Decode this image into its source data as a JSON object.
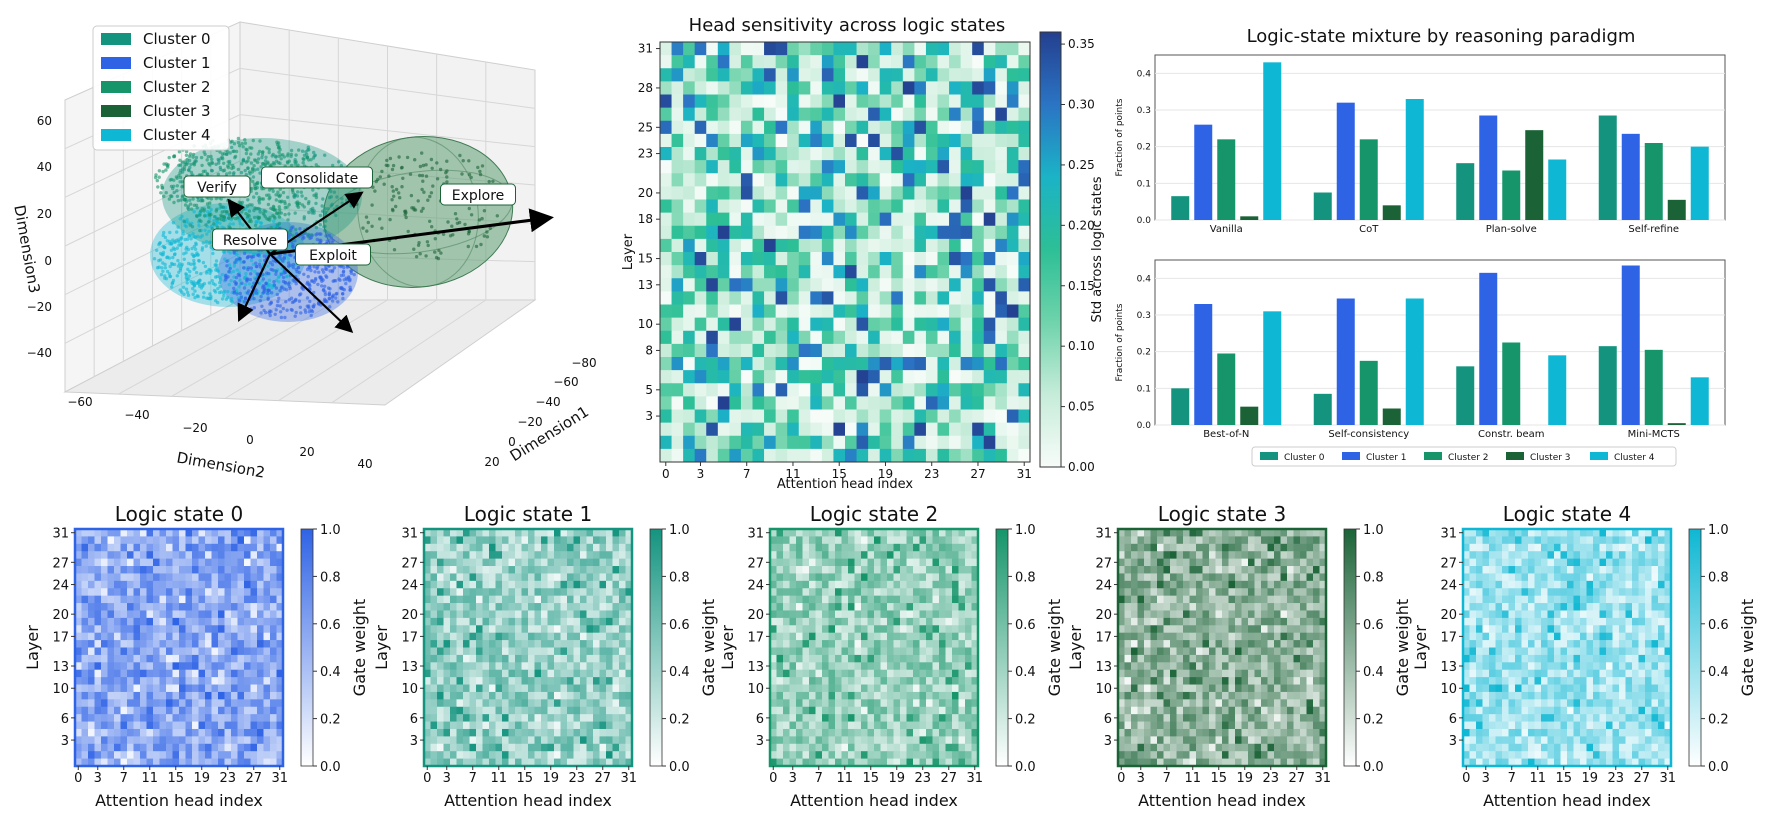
{
  "colors": {
    "cluster0": "#14947f",
    "cluster1": "#2f63e6",
    "cluster2": "#16956a",
    "cluster3": "#1b6337",
    "cluster4": "#0eb7d3",
    "explore_shell": "#5e9e72",
    "sensitivity_cmap": [
      "#f7fcf9",
      "#c6ecd9",
      "#6fd3ab",
      "#2dbf96",
      "#1bb3c6",
      "#2b74c4",
      "#243f8f"
    ]
  },
  "scatter3d": {
    "legend": [
      "Cluster 0",
      "Cluster 1",
      "Cluster 2",
      "Cluster 3",
      "Cluster 4"
    ],
    "state_labels": [
      "Verify",
      "Consolidate",
      "Explore",
      "Resolve",
      "Exploit"
    ],
    "xlabel": "Dimension2",
    "ylabel": "Dimension1",
    "zlabel": "Dimension3",
    "x_ticks": [
      "−60",
      "−40",
      "−20",
      "0",
      "20",
      "40"
    ],
    "y_ticks": [
      "−80",
      "−60",
      "−40",
      "−20",
      "0",
      "20"
    ],
    "z_ticks": [
      "60",
      "40",
      "20",
      "0",
      "−20",
      "−40"
    ]
  },
  "sensitivity": {
    "title": "Head sensitivity across logic states",
    "xlabel": "Attention head index",
    "ylabel": "Layer",
    "colorbar_label": "Std across logic states",
    "x_ticks": [
      "0",
      "3",
      "7",
      "11",
      "15",
      "19",
      "23",
      "27",
      "31"
    ],
    "y_ticks": [
      "31",
      "28",
      "25",
      "23",
      "20",
      "18",
      "15",
      "13",
      "10",
      "8",
      "5",
      "3"
    ],
    "colorbar_ticks": [
      "0.35",
      "0.30",
      "0.25",
      "0.20",
      "0.15",
      "0.10",
      "0.05",
      "0.00"
    ],
    "vmax": 0.36
  },
  "chart_data": [
    {
      "type": "scatter",
      "title": "",
      "xlabel": "Dimension2",
      "ylabel": "Dimension1",
      "zlabel": "Dimension3",
      "series": [
        {
          "name": "Cluster 0"
        },
        {
          "name": "Cluster 1"
        },
        {
          "name": "Cluster 2"
        },
        {
          "name": "Cluster 3"
        },
        {
          "name": "Cluster 4"
        }
      ],
      "annotations": [
        "Verify",
        "Consolidate",
        "Explore",
        "Resolve",
        "Exploit"
      ],
      "xlim": [
        -60,
        40
      ],
      "ylim": [
        -80,
        20
      ],
      "zlim": [
        -40,
        60
      ]
    },
    {
      "type": "heatmap",
      "title": "Head sensitivity across logic states",
      "xlabel": "Attention head index",
      "ylabel": "Layer",
      "colorbar_label": "Std across logic states",
      "value_range": [
        0.0,
        0.36
      ],
      "shape": [
        32,
        32
      ]
    },
    {
      "type": "bar",
      "title": "Logic-state mixture by reasoning paradigm",
      "ylabel": "Fraction of points",
      "legend": [
        "Cluster 0",
        "Cluster 1",
        "Cluster 2",
        "Cluster 3",
        "Cluster 4"
      ],
      "y_ticks": [
        "0.4",
        "0.3",
        "0.2",
        "0.1",
        "0.0"
      ],
      "ylim": [
        0,
        0.45
      ],
      "panels": [
        {
          "categories": [
            "Vanilla",
            "CoT",
            "Plan-solve",
            "Self-refine"
          ],
          "series": [
            {
              "name": "Cluster 0",
              "values": [
                0.065,
                0.075,
                0.155,
                0.285
              ]
            },
            {
              "name": "Cluster 1",
              "values": [
                0.26,
                0.32,
                0.285,
                0.235
              ]
            },
            {
              "name": "Cluster 2",
              "values": [
                0.22,
                0.22,
                0.135,
                0.21
              ]
            },
            {
              "name": "Cluster 3",
              "values": [
                0.01,
                0.04,
                0.245,
                0.055
              ]
            },
            {
              "name": "Cluster 4",
              "values": [
                0.43,
                0.33,
                0.165,
                0.2
              ]
            }
          ]
        },
        {
          "categories": [
            "Best-of-N",
            "Self-consistency",
            "Constr. beam",
            "Mini-MCTS"
          ],
          "series": [
            {
              "name": "Cluster 0",
              "values": [
                0.1,
                0.085,
                0.16,
                0.215
              ]
            },
            {
              "name": "Cluster 1",
              "values": [
                0.33,
                0.345,
                0.415,
                0.435
              ]
            },
            {
              "name": "Cluster 2",
              "values": [
                0.195,
                0.175,
                0.225,
                0.205
              ]
            },
            {
              "name": "Cluster 3",
              "values": [
                0.05,
                0.045,
                0.0,
                0.005
              ]
            },
            {
              "name": "Cluster 4",
              "values": [
                0.31,
                0.345,
                0.19,
                0.13
              ]
            }
          ]
        }
      ]
    },
    {
      "type": "heatmap",
      "title": "Logic state 0",
      "xlabel": "Attention head index",
      "ylabel": "Layer",
      "colorbar_label": "Gate weight",
      "x_ticks": [
        "0",
        "3",
        "7",
        "11",
        "15",
        "19",
        "23",
        "27",
        "31"
      ],
      "y_ticks": [
        "31",
        "27",
        "24",
        "20",
        "17",
        "13",
        "10",
        "6",
        "3"
      ],
      "colorbar_ticks": [
        "1.0",
        "0.8",
        "0.6",
        "0.4",
        "0.2",
        "0.0"
      ],
      "value_range": [
        0.0,
        1.0
      ],
      "shape": [
        32,
        32
      ],
      "color": "#2f63e6"
    },
    {
      "type": "heatmap",
      "title": "Logic state 1",
      "xlabel": "Attention head index",
      "ylabel": "Layer",
      "colorbar_label": "Gate weight",
      "x_ticks": [
        "0",
        "3",
        "7",
        "11",
        "15",
        "19",
        "23",
        "27",
        "31"
      ],
      "y_ticks": [
        "31",
        "27",
        "24",
        "20",
        "17",
        "13",
        "10",
        "6",
        "3"
      ],
      "colorbar_ticks": [
        "1.0",
        "0.8",
        "0.6",
        "0.4",
        "0.2",
        "0.0"
      ],
      "value_range": [
        0.0,
        1.0
      ],
      "shape": [
        32,
        32
      ],
      "color": "#14947f"
    },
    {
      "type": "heatmap",
      "title": "Logic state 2",
      "xlabel": "Attention head index",
      "ylabel": "Layer",
      "colorbar_label": "Gate weight",
      "x_ticks": [
        "0",
        "3",
        "7",
        "11",
        "15",
        "19",
        "23",
        "27",
        "31"
      ],
      "y_ticks": [
        "31",
        "27",
        "24",
        "20",
        "17",
        "13",
        "10",
        "6",
        "3"
      ],
      "colorbar_ticks": [
        "1.0",
        "0.8",
        "0.6",
        "0.4",
        "0.2",
        "0.0"
      ],
      "value_range": [
        0.0,
        1.0
      ],
      "shape": [
        32,
        32
      ],
      "color": "#16956a"
    },
    {
      "type": "heatmap",
      "title": "Logic state 3",
      "xlabel": "Attention head index",
      "ylabel": "Layer",
      "colorbar_label": "Gate weight",
      "x_ticks": [
        "0",
        "3",
        "7",
        "11",
        "15",
        "19",
        "23",
        "27",
        "31"
      ],
      "y_ticks": [
        "31",
        "27",
        "24",
        "20",
        "17",
        "13",
        "10",
        "6",
        "3"
      ],
      "colorbar_ticks": [
        "1.0",
        "0.8",
        "0.6",
        "0.4",
        "0.2",
        "0.0"
      ],
      "value_range": [
        0.0,
        1.0
      ],
      "shape": [
        32,
        32
      ],
      "color": "#1b6337"
    },
    {
      "type": "heatmap",
      "title": "Logic state 4",
      "xlabel": "Attention head index",
      "ylabel": "Layer",
      "colorbar_label": "Gate weight",
      "x_ticks": [
        "0",
        "3",
        "7",
        "11",
        "15",
        "19",
        "23",
        "27",
        "31"
      ],
      "y_ticks": [
        "31",
        "27",
        "24",
        "20",
        "17",
        "13",
        "10",
        "6",
        "3"
      ],
      "colorbar_ticks": [
        "1.0",
        "0.8",
        "0.6",
        "0.4",
        "0.2",
        "0.0"
      ],
      "value_range": [
        0.0,
        1.0
      ],
      "shape": [
        32,
        32
      ],
      "color": "#0eb7d3"
    }
  ]
}
